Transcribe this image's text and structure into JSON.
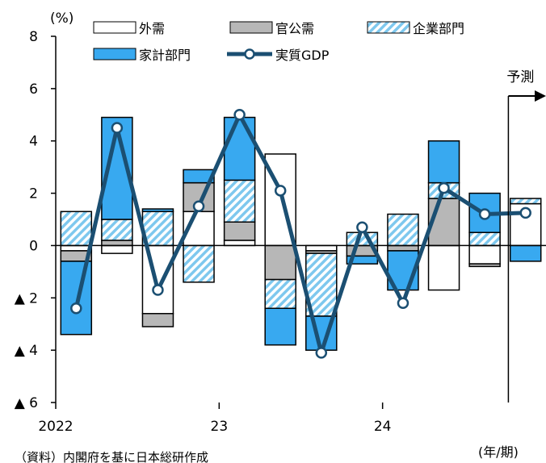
{
  "chart_data": {
    "type": "bar",
    "subtype": "stacked-bar-with-line",
    "unit_label": "(%)",
    "xlabel": "(年/期)",
    "source_note": "（資料）内閣府を基に日本総研作成",
    "forecast_label": "予測",
    "ylim": [
      -6,
      8
    ],
    "yticks": [
      {
        "value": 8,
        "label": "8"
      },
      {
        "value": 6,
        "label": "6"
      },
      {
        "value": 4,
        "label": "4"
      },
      {
        "value": 2,
        "label": "2"
      },
      {
        "value": 0,
        "label": "0"
      },
      {
        "value": -2,
        "label": "▲ 2"
      },
      {
        "value": -4,
        "label": "▲ 4"
      },
      {
        "value": -6,
        "label": "▲ 6"
      }
    ],
    "year_labels": [
      {
        "index": 0,
        "label": "2022"
      },
      {
        "index": 4,
        "label": "23"
      },
      {
        "index": 8,
        "label": "24"
      }
    ],
    "forecast_start_index": 11,
    "categories": [
      "",
      "",
      "",
      "",
      "",
      "",
      "",
      "",
      "",
      "",
      "",
      ""
    ],
    "series": [
      {
        "name": "外需",
        "style": "hollow",
        "values": [
          -0.2,
          -0.3,
          -2.6,
          1.3,
          0.2,
          3.5,
          -0.2,
          0.0,
          0.0,
          -1.7,
          -0.7,
          1.6
        ]
      },
      {
        "name": "官公需",
        "style": "gray",
        "values": [
          -0.4,
          0.2,
          -0.5,
          1.1,
          0.7,
          -1.3,
          -0.1,
          -0.4,
          -0.2,
          1.8,
          -0.1,
          0.0
        ]
      },
      {
        "name": "企業部門",
        "style": "hatched",
        "values": [
          1.3,
          0.8,
          1.3,
          -1.4,
          1.6,
          -1.1,
          -2.4,
          0.5,
          1.2,
          0.6,
          0.5,
          0.2
        ]
      },
      {
        "name": "家計部門",
        "style": "blue",
        "values": [
          -2.8,
          3.9,
          0.1,
          0.5,
          2.4,
          -1.4,
          -1.3,
          -0.3,
          -1.5,
          1.6,
          1.5,
          -0.6
        ]
      }
    ],
    "line_series": {
      "name": "実質GDP",
      "values": [
        -2.4,
        4.5,
        -1.7,
        1.5,
        5.0,
        2.1,
        -4.1,
        0.7,
        -2.2,
        2.2,
        1.2,
        1.25
      ]
    },
    "colors": {
      "hollow_fill": "#ffffff",
      "hollow_stroke": "#000000",
      "gray": "#b7b7b7",
      "hatch_bg": "#ffffff",
      "hatch_line": "#7ec8ee",
      "blue": "#38a9f0",
      "line": "#1b4f72"
    },
    "grid": false,
    "legend_position": "top"
  }
}
